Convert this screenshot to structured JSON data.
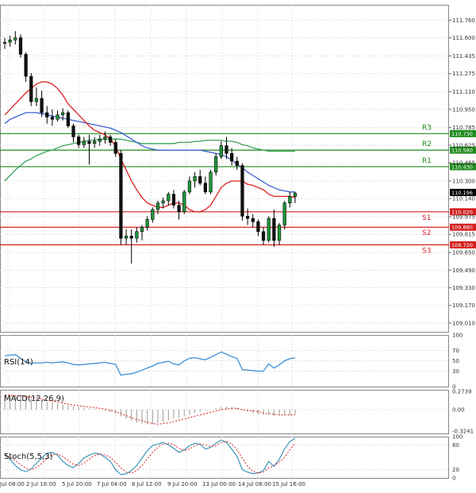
{
  "chart_data": {
    "type": "candlestick",
    "symbol_pair_axis": "price",
    "price_ylim": [
      108.93,
      111.9
    ],
    "price_ticks": [
      "111.760",
      "111.600",
      "111.435",
      "111.275",
      "111.110",
      "110.950",
      "110.785",
      "110.625",
      "110.465",
      "110.300",
      "110.140",
      "109.975",
      "109.815",
      "109.650",
      "109.490",
      "109.330",
      "109.170",
      "109.010"
    ],
    "current_price": "110.196",
    "x_labels": [
      "Jul 08:00",
      "2 Jul 16:00",
      "5 Jul 20:00",
      "7 Jul 04:00",
      "8 Jul 12:00",
      "9 Jul 20:00",
      "13 Jul 00:00",
      "14 Jul 08:00",
      "15 Jul 16:00"
    ],
    "levels": [
      {
        "name": "R3",
        "value": 110.73,
        "tag": "110.730",
        "color": "#1f8a1f"
      },
      {
        "name": "R2",
        "value": 110.58,
        "tag": "110.580",
        "color": "#1f8a1f"
      },
      {
        "name": "R1",
        "value": 110.43,
        "tag": "110.430",
        "color": "#1f8a1f"
      },
      {
        "name": "S1",
        "value": 110.02,
        "tag": "110.020",
        "color": "#d42020"
      },
      {
        "name": "S2",
        "value": 109.88,
        "tag": "109.880",
        "color": "#d42020"
      },
      {
        "name": "S3",
        "value": 109.72,
        "tag": "109.720",
        "color": "#d42020"
      }
    ],
    "candles": [
      [
        111.55,
        111.6,
        111.5,
        111.56
      ],
      [
        111.56,
        111.62,
        111.52,
        111.58
      ],
      [
        111.58,
        111.66,
        111.54,
        111.6
      ],
      [
        111.6,
        111.63,
        111.42,
        111.45
      ],
      [
        111.45,
        111.47,
        111.2,
        111.25
      ],
      [
        111.25,
        111.28,
        110.98,
        111.02
      ],
      [
        111.02,
        111.15,
        110.98,
        111.05
      ],
      [
        111.05,
        111.12,
        110.88,
        110.92
      ],
      [
        110.92,
        110.98,
        110.82,
        110.88
      ],
      [
        110.88,
        110.95,
        110.8,
        110.86
      ],
      [
        110.86,
        110.94,
        110.84,
        110.9
      ],
      [
        110.9,
        110.96,
        110.85,
        110.92
      ],
      [
        110.92,
        110.94,
        110.78,
        110.8
      ],
      [
        110.8,
        110.82,
        110.65,
        110.7
      ],
      [
        110.7,
        110.72,
        110.6,
        110.63
      ],
      [
        110.63,
        110.7,
        110.6,
        110.66
      ],
      [
        110.66,
        110.72,
        110.45,
        110.64
      ],
      [
        110.64,
        110.7,
        110.6,
        110.66
      ],
      [
        110.66,
        110.72,
        110.62,
        110.68
      ],
      [
        110.68,
        110.75,
        110.64,
        110.7
      ],
      [
        110.7,
        110.72,
        110.62,
        110.65
      ],
      [
        110.65,
        110.68,
        110.52,
        110.55
      ],
      [
        110.55,
        110.58,
        109.72,
        109.78
      ],
      [
        109.78,
        109.86,
        109.72,
        109.8
      ],
      [
        109.8,
        109.86,
        109.55,
        109.78
      ],
      [
        109.78,
        109.88,
        109.74,
        109.84
      ],
      [
        109.84,
        109.9,
        109.76,
        109.88
      ],
      [
        109.88,
        109.98,
        109.85,
        109.95
      ],
      [
        109.95,
        110.06,
        109.92,
        110.04
      ],
      [
        110.04,
        110.12,
        110.0,
        110.1
      ],
      [
        110.1,
        110.15,
        110.05,
        110.12
      ],
      [
        110.12,
        110.2,
        110.08,
        110.18
      ],
      [
        110.18,
        110.22,
        110.05,
        110.08
      ],
      [
        110.08,
        110.12,
        109.95,
        110.02
      ],
      [
        110.02,
        110.22,
        110.0,
        110.2
      ],
      [
        110.2,
        110.34,
        110.18,
        110.3
      ],
      [
        110.3,
        110.38,
        110.24,
        110.34
      ],
      [
        110.34,
        110.4,
        110.26,
        110.28
      ],
      [
        110.28,
        110.34,
        110.18,
        110.2
      ],
      [
        110.2,
        110.4,
        110.18,
        110.38
      ],
      [
        110.38,
        110.55,
        110.35,
        110.52
      ],
      [
        110.52,
        110.66,
        110.5,
        110.62
      ],
      [
        110.62,
        110.7,
        110.5,
        110.55
      ],
      [
        110.55,
        110.6,
        110.44,
        110.48
      ],
      [
        110.48,
        110.52,
        110.4,
        110.44
      ],
      [
        110.44,
        110.46,
        109.94,
        109.98
      ],
      [
        109.98,
        110.05,
        109.9,
        109.96
      ],
      [
        109.96,
        110.0,
        109.88,
        109.93
      ],
      [
        109.93,
        109.95,
        109.8,
        109.84
      ],
      [
        109.84,
        109.88,
        109.72,
        109.76
      ],
      [
        109.76,
        109.98,
        109.74,
        109.96
      ],
      [
        109.96,
        110.04,
        109.7,
        109.76
      ],
      [
        109.76,
        109.92,
        109.72,
        109.9
      ],
      [
        109.9,
        110.12,
        109.86,
        110.1
      ],
      [
        110.1,
        110.2,
        110.06,
        110.16
      ],
      [
        110.16,
        110.2,
        110.1,
        110.19
      ]
    ],
    "ma_red": [
      110.9,
      110.95,
      111.0,
      111.05,
      111.1,
      111.14,
      111.18,
      111.2,
      111.2,
      111.18,
      111.14,
      111.08,
      111.0,
      110.95,
      110.9,
      110.85,
      110.8,
      110.76,
      110.74,
      110.72,
      110.68,
      110.62,
      110.5,
      110.4,
      110.3,
      110.22,
      110.15,
      110.1,
      110.08,
      110.06,
      110.06,
      110.08,
      110.1,
      110.1,
      110.08,
      110.04,
      110.02,
      110.02,
      110.04,
      110.08,
      110.16,
      110.24,
      110.28,
      110.3,
      110.3,
      110.3,
      110.27,
      110.26,
      110.24,
      110.22,
      110.18,
      110.16,
      110.16,
      110.16,
      110.16,
      110.15
    ],
    "ma_blue": [
      110.82,
      110.86,
      110.88,
      110.9,
      110.92,
      110.92,
      110.92,
      110.91,
      110.9,
      110.89,
      110.88,
      110.87,
      110.86,
      110.85,
      110.84,
      110.83,
      110.82,
      110.81,
      110.8,
      110.79,
      110.78,
      110.76,
      110.74,
      110.71,
      110.68,
      110.65,
      110.62,
      110.6,
      110.59,
      110.58,
      110.58,
      110.58,
      110.58,
      110.58,
      110.58,
      110.58,
      110.58,
      110.58,
      110.57,
      110.56,
      110.55,
      110.54,
      110.52,
      110.49,
      110.45,
      110.42,
      110.38,
      110.35,
      110.32,
      110.29,
      110.26,
      110.24,
      110.22,
      110.21,
      110.2,
      110.2
    ],
    "ma_green": [
      110.3,
      110.35,
      110.4,
      110.44,
      110.48,
      110.5,
      110.53,
      110.55,
      110.57,
      110.58,
      110.6,
      110.62,
      110.63,
      110.64,
      110.65,
      110.66,
      110.67,
      110.67,
      110.68,
      110.68,
      110.68,
      110.68,
      110.68,
      110.67,
      110.66,
      110.65,
      110.64,
      110.64,
      110.64,
      110.64,
      110.64,
      110.64,
      110.64,
      110.65,
      110.65,
      110.65,
      110.66,
      110.66,
      110.67,
      110.67,
      110.67,
      110.67,
      110.66,
      110.66,
      110.65,
      110.63,
      110.62,
      110.6,
      110.59,
      110.58,
      110.57,
      110.57,
      110.57,
      110.57,
      110.57,
      110.57
    ],
    "rsi": {
      "label": "RSI(14)",
      "ylim": [
        0,
        100
      ],
      "ticks": [
        "100",
        "70",
        "50",
        "30",
        "0"
      ],
      "values": [
        60,
        61,
        62,
        55,
        48,
        45,
        46,
        46,
        47,
        46,
        47,
        48,
        46,
        43,
        42,
        43,
        44,
        45,
        46,
        47,
        45,
        43,
        22,
        24,
        25,
        28,
        32,
        36,
        40,
        45,
        47,
        49,
        44,
        42,
        50,
        55,
        56,
        54,
        52,
        57,
        62,
        67,
        63,
        58,
        55,
        33,
        32,
        31,
        30,
        30,
        44,
        36,
        42,
        50,
        54,
        56
      ]
    },
    "macd": {
      "label": "MACD(12,26,9)",
      "ticks": [
        "0.2739",
        "0.00",
        "-0.3241"
      ],
      "ylim": [
        -0.36,
        0.3
      ],
      "hist": [
        0.22,
        0.22,
        0.21,
        0.2,
        0.19,
        0.18,
        0.16,
        0.14,
        0.12,
        0.11,
        0.1,
        0.08,
        0.06,
        0.05,
        0.04,
        0.03,
        0.02,
        0.01,
        0.0,
        -0.02,
        -0.04,
        -0.06,
        -0.1,
        -0.14,
        -0.17,
        -0.2,
        -0.21,
        -0.22,
        -0.22,
        -0.2,
        -0.19,
        -0.16,
        -0.14,
        -0.12,
        -0.1,
        -0.08,
        -0.05,
        -0.03,
        -0.01,
        0.0,
        0.02,
        0.04,
        0.05,
        0.04,
        0.03,
        -0.01,
        -0.03,
        -0.05,
        -0.07,
        -0.08,
        -0.08,
        -0.1,
        -0.09,
        -0.08,
        -0.08,
        -0.07
      ],
      "signal": [
        0.22,
        0.22,
        0.21,
        0.21,
        0.2,
        0.19,
        0.18,
        0.16,
        0.14,
        0.13,
        0.12,
        0.1,
        0.08,
        0.07,
        0.06,
        0.05,
        0.04,
        0.03,
        0.02,
        0.01,
        -0.01,
        -0.03,
        -0.06,
        -0.09,
        -0.12,
        -0.15,
        -0.17,
        -0.19,
        -0.21,
        -0.22,
        -0.21,
        -0.2,
        -0.18,
        -0.16,
        -0.14,
        -0.12,
        -0.1,
        -0.08,
        -0.06,
        -0.04,
        -0.02,
        0.0,
        0.01,
        0.02,
        0.02,
        0.0,
        -0.01,
        -0.02,
        -0.03,
        -0.05,
        -0.06,
        -0.07,
        -0.08,
        -0.08,
        -0.08,
        -0.08
      ]
    },
    "stoch": {
      "label": "Stoch(5,5,3)",
      "ylim": [
        0,
        100
      ],
      "ticks": [
        "100",
        "80",
        "20",
        "0"
      ],
      "k": [
        60,
        45,
        30,
        20,
        15,
        22,
        35,
        48,
        60,
        62,
        55,
        40,
        30,
        25,
        35,
        48,
        55,
        60,
        58,
        50,
        40,
        20,
        8,
        10,
        18,
        30,
        48,
        66,
        78,
        82,
        86,
        80,
        72,
        62,
        68,
        78,
        84,
        82,
        70,
        74,
        84,
        92,
        86,
        70,
        52,
        20,
        14,
        10,
        12,
        18,
        40,
        28,
        45,
        70,
        88,
        96
      ],
      "d": [
        55,
        50,
        42,
        32,
        24,
        20,
        25,
        35,
        48,
        56,
        58,
        52,
        42,
        33,
        30,
        36,
        46,
        54,
        58,
        56,
        50,
        38,
        24,
        14,
        12,
        18,
        30,
        46,
        62,
        74,
        82,
        84,
        80,
        72,
        66,
        70,
        78,
        82,
        80,
        76,
        78,
        86,
        88,
        82,
        68,
        48,
        28,
        16,
        12,
        14,
        24,
        30,
        38,
        50,
        68,
        84
      ]
    }
  }
}
